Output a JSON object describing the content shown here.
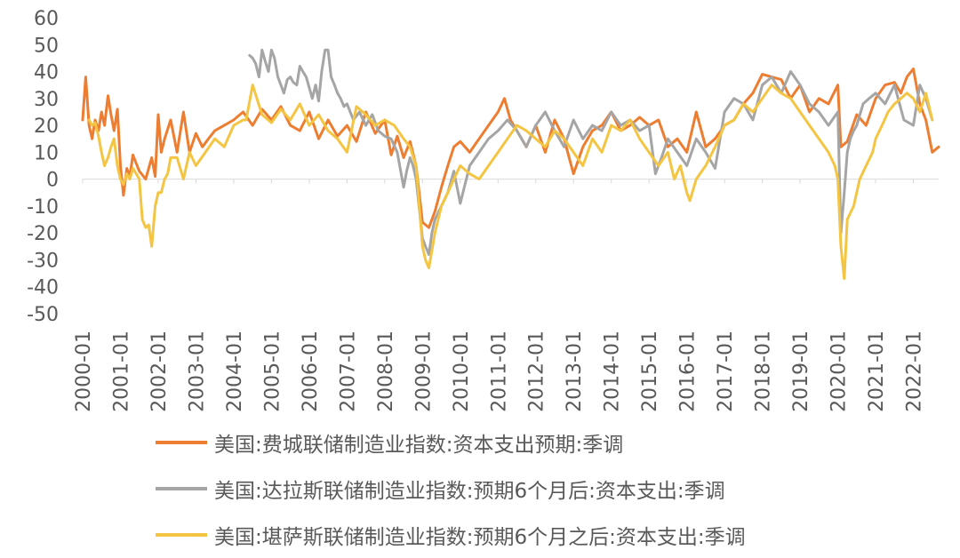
{
  "chart_data": {
    "type": "line",
    "title": "",
    "xlabel": "",
    "ylabel": "",
    "ylim": [
      -50,
      60
    ],
    "yticks": [
      "60",
      "50",
      "40",
      "30",
      "20",
      "10",
      "0",
      "-10",
      "-20",
      "-30",
      "-40",
      "-50"
    ],
    "xrange": [
      2000.0,
      2022.67
    ],
    "xticks": [
      "2000-01",
      "2001-01",
      "2002-01",
      "2003-01",
      "2004-01",
      "2005-01",
      "2006-01",
      "2007-01",
      "2008-01",
      "2009-01",
      "2010-01",
      "2011-01",
      "2012-01",
      "2013-01",
      "2014-01",
      "2015-01",
      "2016-01",
      "2017-01",
      "2018-01",
      "2019-01",
      "2020-01",
      "2021-01",
      "2022-01"
    ],
    "legend_position": "bottom",
    "grid": false,
    "series": [
      {
        "name": "美国:费城联储制造业指数:资本支出预期:季调",
        "color": "#ED7D31",
        "x": [
          2000.0,
          2000.08,
          2000.17,
          2000.25,
          2000.33,
          2000.42,
          2000.5,
          2000.58,
          2000.67,
          2000.75,
          2000.83,
          2000.92,
          2001.0,
          2001.08,
          2001.17,
          2001.25,
          2001.33,
          2001.5,
          2001.67,
          2001.83,
          2001.92,
          2002.0,
          2002.08,
          2002.17,
          2002.33,
          2002.5,
          2002.67,
          2002.83,
          2003.0,
          2003.17,
          2003.33,
          2003.5,
          2003.75,
          2004.0,
          2004.25,
          2004.5,
          2004.75,
          2005.0,
          2005.25,
          2005.5,
          2005.75,
          2006.0,
          2006.25,
          2006.5,
          2006.75,
          2007.0,
          2007.25,
          2007.5,
          2007.75,
          2008.0,
          2008.17,
          2008.33,
          2008.5,
          2008.67,
          2008.83,
          2009.0,
          2009.17,
          2009.33,
          2009.5,
          2009.67,
          2009.83,
          2010.0,
          2010.25,
          2010.5,
          2010.75,
          2011.0,
          2011.17,
          2011.33,
          2011.5,
          2011.75,
          2012.0,
          2012.25,
          2012.5,
          2012.75,
          2013.0,
          2013.25,
          2013.5,
          2013.75,
          2014.0,
          2014.25,
          2014.5,
          2014.75,
          2015.0,
          2015.25,
          2015.5,
          2015.75,
          2016.0,
          2016.25,
          2016.5,
          2016.75,
          2017.0,
          2017.25,
          2017.5,
          2017.75,
          2018.0,
          2018.25,
          2018.5,
          2018.75,
          2019.0,
          2019.25,
          2019.5,
          2019.75,
          2020.0,
          2020.08,
          2020.25,
          2020.5,
          2020.75,
          2021.0,
          2021.25,
          2021.5,
          2021.67,
          2021.83,
          2022.0,
          2022.17,
          2022.33,
          2022.5,
          2022.67
        ],
        "values": [
          22,
          38,
          20,
          15,
          22,
          18,
          25,
          20,
          31,
          24,
          18,
          26,
          5,
          -6,
          4,
          1,
          9,
          3,
          0,
          8,
          1,
          24,
          10,
          15,
          22,
          10,
          25,
          10,
          17,
          12,
          15,
          18,
          20,
          22,
          25,
          20,
          26,
          22,
          27,
          20,
          18,
          25,
          15,
          22,
          16,
          20,
          14,
          25,
          17,
          22,
          9,
          16,
          8,
          14,
          5,
          -16,
          -18,
          -12,
          -3,
          5,
          12,
          14,
          10,
          15,
          20,
          25,
          30,
          22,
          18,
          12,
          20,
          10,
          22,
          15,
          2,
          12,
          18,
          20,
          25,
          18,
          20,
          23,
          20,
          22,
          12,
          15,
          10,
          25,
          12,
          15,
          20,
          22,
          28,
          32,
          39,
          38,
          37,
          30,
          35,
          25,
          30,
          28,
          35,
          12,
          14,
          24,
          20,
          30,
          35,
          36,
          32,
          38,
          41,
          28,
          22,
          10,
          12
        ]
      },
      {
        "name": "美国:达拉斯联储制造业指数:预期6个月后:资本支出:季调",
        "color": "#A5A5A5",
        "x": [
          2004.42,
          2004.5,
          2004.58,
          2004.67,
          2004.75,
          2004.83,
          2004.92,
          2005.0,
          2005.08,
          2005.17,
          2005.25,
          2005.33,
          2005.42,
          2005.5,
          2005.58,
          2005.67,
          2005.75,
          2005.83,
          2005.92,
          2006.0,
          2006.08,
          2006.17,
          2006.25,
          2006.33,
          2006.42,
          2006.5,
          2006.58,
          2006.67,
          2006.75,
          2006.83,
          2006.92,
          2007.0,
          2007.17,
          2007.33,
          2007.5,
          2007.67,
          2007.83,
          2008.0,
          2008.17,
          2008.33,
          2008.5,
          2008.58,
          2008.67,
          2008.75,
          2008.83,
          2009.0,
          2009.08,
          2009.17,
          2009.25,
          2009.33,
          2009.5,
          2009.67,
          2009.83,
          2010.0,
          2010.25,
          2010.5,
          2010.75,
          2011.0,
          2011.25,
          2011.5,
          2011.75,
          2012.0,
          2012.25,
          2012.5,
          2012.75,
          2013.0,
          2013.25,
          2013.5,
          2013.75,
          2014.0,
          2014.25,
          2014.5,
          2014.75,
          2015.0,
          2015.17,
          2015.33,
          2015.5,
          2015.75,
          2016.0,
          2016.25,
          2016.5,
          2016.75,
          2017.0,
          2017.25,
          2017.5,
          2017.75,
          2018.0,
          2018.25,
          2018.5,
          2018.75,
          2019.0,
          2019.25,
          2019.5,
          2019.75,
          2020.0,
          2020.08,
          2020.17,
          2020.25,
          2020.33,
          2020.42,
          2020.5,
          2020.67,
          2020.83,
          2021.0,
          2021.25,
          2021.5,
          2021.75,
          2022.0,
          2022.17,
          2022.33,
          2022.5
        ],
        "values": [
          46,
          45,
          43,
          38,
          48,
          44,
          40,
          48,
          45,
          38,
          35,
          32,
          37,
          38,
          36,
          35,
          42,
          40,
          38,
          34,
          30,
          35,
          29,
          40,
          48,
          48,
          38,
          35,
          32,
          30,
          27,
          28,
          22,
          25,
          20,
          24,
          18,
          16,
          15,
          10,
          -3,
          3,
          8,
          5,
          0,
          -22,
          -25,
          -28,
          -20,
          -15,
          -10,
          -5,
          3,
          -9,
          5,
          10,
          15,
          18,
          22,
          18,
          12,
          20,
          25,
          18,
          12,
          22,
          15,
          20,
          18,
          25,
          20,
          22,
          18,
          20,
          2,
          8,
          15,
          10,
          5,
          15,
          10,
          4,
          25,
          30,
          28,
          22,
          35,
          38,
          32,
          40,
          35,
          28,
          25,
          20,
          25,
          -20,
          -5,
          10,
          15,
          18,
          20,
          28,
          30,
          32,
          28,
          35,
          22,
          20,
          35,
          30,
          22
        ]
      },
      {
        "name": "美国:堪萨斯联储制造业指数:预期6个月之后:资本支出:季调",
        "color": "#F4C542",
        "x": [
          2000.17,
          2000.25,
          2000.33,
          2000.42,
          2000.5,
          2000.58,
          2000.67,
          2000.75,
          2000.83,
          2000.92,
          2001.0,
          2001.08,
          2001.17,
          2001.25,
          2001.33,
          2001.42,
          2001.5,
          2001.58,
          2001.67,
          2001.75,
          2001.83,
          2001.92,
          2002.0,
          2002.08,
          2002.17,
          2002.25,
          2002.33,
          2002.5,
          2002.67,
          2002.83,
          2003.0,
          2003.25,
          2003.5,
          2003.75,
          2004.0,
          2004.25,
          2004.33,
          2004.5,
          2004.75,
          2005.0,
          2005.25,
          2005.5,
          2005.75,
          2006.0,
          2006.25,
          2006.5,
          2006.75,
          2007.0,
          2007.25,
          2007.5,
          2007.75,
          2008.0,
          2008.25,
          2008.5,
          2008.67,
          2008.83,
          2009.0,
          2009.08,
          2009.17,
          2009.33,
          2009.5,
          2009.67,
          2009.83,
          2010.0,
          2010.25,
          2010.5,
          2010.75,
          2011.0,
          2011.25,
          2011.5,
          2011.75,
          2012.0,
          2012.25,
          2012.5,
          2012.75,
          2013.0,
          2013.25,
          2013.5,
          2013.75,
          2014.0,
          2014.25,
          2014.5,
          2014.75,
          2015.0,
          2015.25,
          2015.5,
          2015.67,
          2015.83,
          2016.0,
          2016.08,
          2016.25,
          2016.5,
          2016.75,
          2017.0,
          2017.25,
          2017.5,
          2017.75,
          2018.0,
          2018.25,
          2018.5,
          2018.75,
          2019.0,
          2019.25,
          2019.5,
          2019.75,
          2019.92,
          2020.0,
          2020.08,
          2020.17,
          2020.25,
          2020.42,
          2020.58,
          2020.75,
          2020.92,
          2021.0,
          2021.17,
          2021.33,
          2021.5,
          2021.67,
          2021.83,
          2022.0,
          2022.17,
          2022.33,
          2022.5
        ],
        "values": [
          22,
          20,
          21,
          16,
          10,
          5,
          8,
          12,
          15,
          5,
          0,
          -2,
          2,
          0,
          4,
          2,
          0,
          -15,
          -18,
          -17,
          -25,
          -10,
          -5,
          -5,
          0,
          2,
          8,
          8,
          0,
          10,
          5,
          10,
          15,
          12,
          20,
          22,
          22,
          35,
          24,
          21,
          26,
          22,
          28,
          20,
          24,
          18,
          15,
          10,
          27,
          24,
          20,
          22,
          20,
          15,
          12,
          5,
          -25,
          -30,
          -33,
          -20,
          -10,
          -5,
          0,
          5,
          2,
          0,
          5,
          10,
          15,
          20,
          18,
          15,
          12,
          18,
          15,
          10,
          5,
          15,
          10,
          20,
          18,
          22,
          15,
          10,
          5,
          10,
          0,
          5,
          -5,
          -8,
          0,
          5,
          12,
          20,
          22,
          28,
          25,
          30,
          35,
          32,
          30,
          25,
          20,
          15,
          10,
          5,
          0,
          -25,
          -37,
          -15,
          -10,
          0,
          5,
          10,
          15,
          20,
          25,
          28,
          30,
          32,
          30,
          25,
          32,
          22
        ]
      }
    ]
  }
}
